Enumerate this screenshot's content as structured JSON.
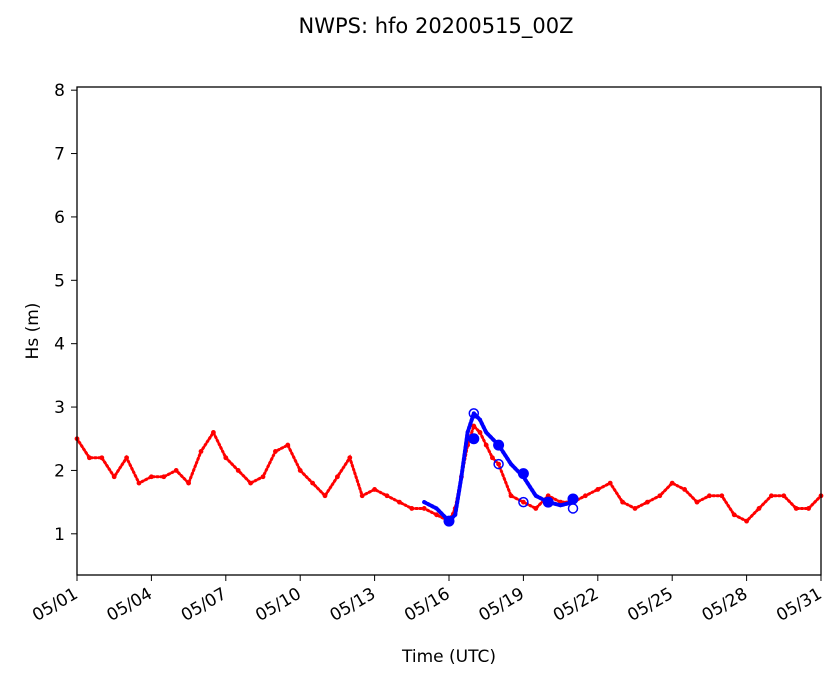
{
  "chart_data": {
    "type": "scatter",
    "title": "NWPS: hfo 20200515_00Z",
    "xlabel": "Time (UTC)",
    "ylabel": "Hs (m)",
    "xlim": [
      "2020-05-01",
      "2020-05-31"
    ],
    "ylim": [
      0.35,
      8.05
    ],
    "yticks": [
      1,
      2,
      3,
      4,
      5,
      6,
      7,
      8
    ],
    "xticks": [
      "05/01",
      "05/04",
      "05/07",
      "05/10",
      "05/13",
      "05/16",
      "05/19",
      "05/22",
      "05/25",
      "05/28",
      "05/31"
    ],
    "grid": false,
    "series": [
      {
        "color": "#ff0000",
        "marker": "small-dot",
        "x": [
          "2020-05-01",
          "2020-05-01T12:00",
          "2020-05-02",
          "2020-05-02T12:00",
          "2020-05-03",
          "2020-05-03T12:00",
          "2020-05-04",
          "2020-05-04T12:00",
          "2020-05-05",
          "2020-05-05T12:00",
          "2020-05-06",
          "2020-05-06T12:00",
          "2020-05-07",
          "2020-05-07T12:00",
          "2020-05-08",
          "2020-05-08T12:00",
          "2020-05-09",
          "2020-05-09T12:00",
          "2020-05-10",
          "2020-05-10T12:00",
          "2020-05-11",
          "2020-05-11T12:00",
          "2020-05-12",
          "2020-05-12T12:00",
          "2020-05-13",
          "2020-05-13T12:00",
          "2020-05-14",
          "2020-05-14T12:00",
          "2020-05-15",
          "2020-05-15T12:00",
          "2020-05-16",
          "2020-05-16T06:00",
          "2020-05-16T12:00",
          "2020-05-16T18:00",
          "2020-05-17",
          "2020-05-17T06:00",
          "2020-05-17T12:00",
          "2020-05-17T18:00",
          "2020-05-18",
          "2020-05-18T12:00",
          "2020-05-19",
          "2020-05-19T12:00",
          "2020-05-20",
          "2020-05-20T12:00",
          "2020-05-21",
          "2020-05-21T12:00",
          "2020-05-22",
          "2020-05-22T12:00",
          "2020-05-23",
          "2020-05-23T12:00",
          "2020-05-24",
          "2020-05-24T12:00",
          "2020-05-25",
          "2020-05-25T12:00",
          "2020-05-26",
          "2020-05-26T12:00",
          "2020-05-27",
          "2020-05-27T12:00",
          "2020-05-28",
          "2020-05-28T12:00",
          "2020-05-29",
          "2020-05-29T12:00",
          "2020-05-30",
          "2020-05-30T12:00",
          "2020-05-31"
        ],
        "y": [
          2.5,
          2.2,
          2.2,
          1.9,
          2.2,
          1.8,
          1.9,
          1.9,
          2.0,
          1.8,
          2.3,
          2.6,
          2.2,
          2.0,
          1.8,
          1.9,
          2.3,
          2.4,
          2.0,
          1.8,
          1.6,
          1.9,
          2.2,
          1.6,
          1.7,
          1.6,
          1.5,
          1.4,
          1.4,
          1.3,
          1.2,
          1.4,
          1.9,
          2.4,
          2.7,
          2.6,
          2.4,
          2.2,
          2.1,
          1.6,
          1.5,
          1.4,
          1.6,
          1.5,
          1.5,
          1.6,
          1.7,
          1.8,
          1.5,
          1.4,
          1.5,
          1.6,
          1.8,
          1.7,
          1.5,
          1.6,
          1.6,
          1.3,
          1.2,
          1.4,
          1.6,
          1.6,
          1.4,
          1.4,
          1.6
        ]
      },
      {
        "color": "#0000ff",
        "marker": "line-of-dots",
        "x": [
          "2020-05-15",
          "2020-05-15T12:00",
          "2020-05-16",
          "2020-05-16T06:00",
          "2020-05-16T12:00",
          "2020-05-16T18:00",
          "2020-05-17",
          "2020-05-17T06:00",
          "2020-05-17T12:00",
          "2020-05-18",
          "2020-05-18T12:00",
          "2020-05-19",
          "2020-05-19T12:00",
          "2020-05-20",
          "2020-05-20T12:00",
          "2020-05-21"
        ],
        "y": [
          1.5,
          1.4,
          1.2,
          1.3,
          1.9,
          2.6,
          2.9,
          2.8,
          2.6,
          2.4,
          2.1,
          1.9,
          1.6,
          1.5,
          1.45,
          1.5
        ]
      },
      {
        "color": "#0000ff",
        "marker": "large-filled-dot",
        "x": [
          "2020-05-16",
          "2020-05-17",
          "2020-05-18",
          "2020-05-19",
          "2020-05-20",
          "2020-05-21"
        ],
        "y": [
          1.2,
          2.5,
          2.4,
          1.95,
          1.5,
          1.55
        ]
      },
      {
        "color": "#0000ff",
        "marker": "open-circle",
        "x": [
          "2020-05-16",
          "2020-05-17",
          "2020-05-18",
          "2020-05-19",
          "2020-05-20",
          "2020-05-21"
        ],
        "y": [
          1.2,
          2.9,
          2.1,
          1.5,
          1.5,
          1.4
        ]
      }
    ]
  }
}
